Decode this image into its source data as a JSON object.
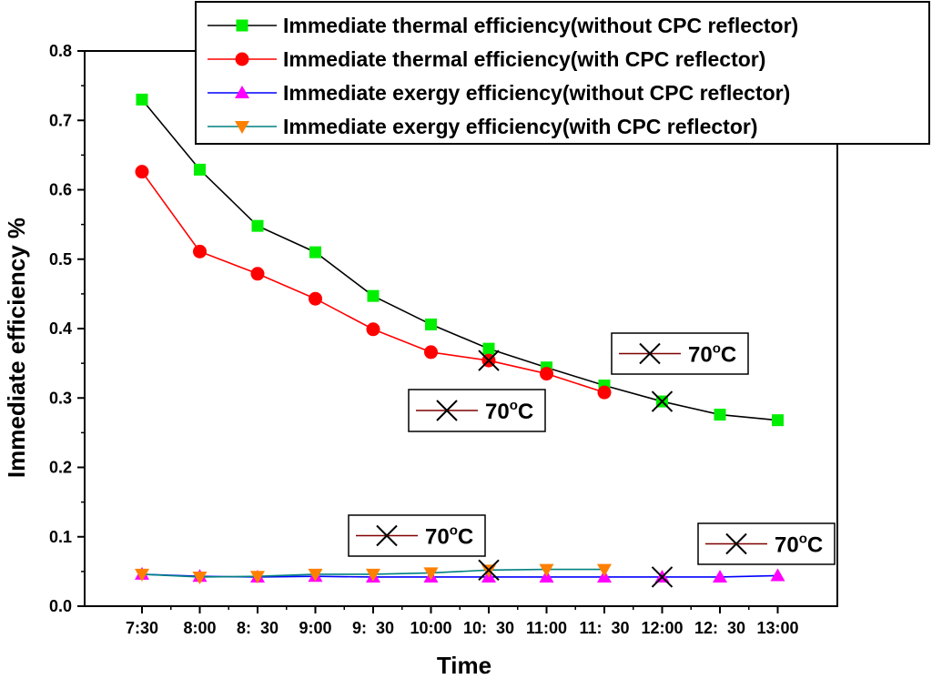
{
  "chart_data": {
    "type": "line",
    "title": "",
    "xlabel": "Time",
    "ylabel": "Immediate efficiency %",
    "ylim": [
      0,
      0.8
    ],
    "yticks": [
      "0.0",
      "0.1",
      "0.2",
      "0.3",
      "0.4",
      "0.5",
      "0.6",
      "0.7",
      "0.8"
    ],
    "categories": [
      "7:30",
      "8:00",
      "8:  30",
      "9:00",
      "9:  30",
      "10:00",
      "10:  30",
      "11:00",
      "11:  30",
      "12:00",
      "12:  30",
      "13:00"
    ],
    "legend_position": "top-right",
    "series": [
      {
        "name": "Immediate thermal efficiency(without CPC reflector)",
        "color": "#000000",
        "marker": "square",
        "marker_color": "#00ee00",
        "values": [
          0.73,
          0.629,
          0.548,
          0.51,
          0.447,
          0.406,
          0.371,
          0.344,
          0.318,
          0.295,
          0.276,
          0.268
        ]
      },
      {
        "name": "Immediate thermal efficiency(with CPC reflector)",
        "color": "#ff0000",
        "marker": "circle",
        "marker_color": "#ff0000",
        "values": [
          0.626,
          0.511,
          0.479,
          0.443,
          0.399,
          0.366,
          0.354,
          0.335,
          0.308,
          null,
          null,
          null
        ]
      },
      {
        "name": "Immediate exergy efficiency(without CPC reflector)",
        "color": "#0000ff",
        "marker": "triangle-up",
        "marker_color": "#ff00ff",
        "values": [
          0.046,
          0.043,
          0.042,
          0.043,
          0.042,
          0.042,
          0.042,
          0.042,
          0.042,
          0.042,
          0.042,
          0.044
        ]
      },
      {
        "name": "Immediate exergy efficiency(with CPC reflector)",
        "color": "#008080",
        "marker": "triangle-down",
        "marker_color": "#ff8000",
        "values": [
          0.046,
          0.042,
          0.043,
          0.046,
          0.046,
          0.048,
          0.052,
          0.053,
          0.053,
          null,
          null,
          null
        ]
      }
    ],
    "annotations": [
      {
        "text": "70",
        "sup": "o",
        "unit": "C",
        "series": 1,
        "index": 6,
        "box": "upper-right"
      },
      {
        "text": "70",
        "sup": "o",
        "unit": "C",
        "series": 0,
        "index": 9,
        "box": "left"
      },
      {
        "text": "70",
        "sup": "o",
        "unit": "C",
        "series": 3,
        "index": 6,
        "box": "top-left"
      },
      {
        "text": "70",
        "sup": "o",
        "unit": "C",
        "series": 2,
        "index": 9,
        "box": "top-right"
      }
    ]
  }
}
